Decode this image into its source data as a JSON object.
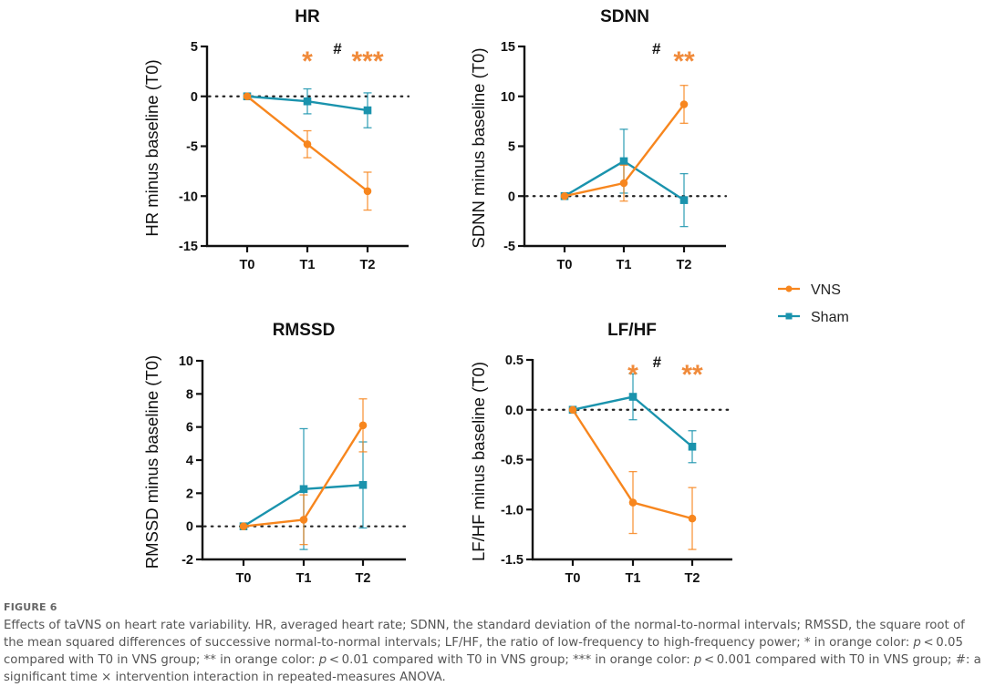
{
  "colors": {
    "vns": "#F7861E",
    "sham": "#1A93AD",
    "axis": "#111111",
    "annot_orange": "#F08A3A",
    "annot_black": "#111111"
  },
  "legend": {
    "items": [
      {
        "label": "VNS",
        "marker": "circle",
        "color": "#F7861E"
      },
      {
        "label": "Sham",
        "marker": "square",
        "color": "#1A93AD"
      }
    ]
  },
  "chart_data": [
    {
      "type": "line",
      "title": "HR",
      "ylabel": "HR minus baseline (T0)",
      "xlabel": "",
      "categories": [
        "T0",
        "T1",
        "T2"
      ],
      "ylim": [
        -15,
        5
      ],
      "yticks": [
        5,
        0,
        -5,
        -10,
        -15
      ],
      "ytick_labels": [
        "5",
        "0",
        "-5",
        "-10",
        "-15"
      ],
      "reference_line": 0,
      "series": [
        {
          "name": "VNS",
          "values": [
            0,
            -4.8,
            -9.5
          ],
          "err": [
            0,
            1.35,
            1.9
          ]
        },
        {
          "name": "Sham",
          "values": [
            0,
            -0.5,
            -1.4
          ],
          "err": [
            0,
            1.25,
            1.75
          ]
        }
      ],
      "annotations": [
        {
          "text": "*",
          "category": "T1",
          "color": "orange",
          "size": "large"
        },
        {
          "text": "#",
          "category": "T1.5",
          "color": "black",
          "size": "small"
        },
        {
          "text": "***",
          "category": "T2",
          "color": "orange",
          "size": "large"
        }
      ]
    },
    {
      "type": "line",
      "title": "SDNN",
      "ylabel": "SDNN minus baseline (T0)",
      "xlabel": "",
      "categories": [
        "T0",
        "T1",
        "T2"
      ],
      "ylim": [
        -5,
        15
      ],
      "yticks": [
        15,
        10,
        5,
        0,
        -5
      ],
      "ytick_labels": [
        "15",
        "10",
        "5",
        "0",
        "-5"
      ],
      "reference_line": 0,
      "series": [
        {
          "name": "VNS",
          "values": [
            0,
            1.3,
            9.2
          ],
          "err": [
            0,
            1.8,
            1.9
          ]
        },
        {
          "name": "Sham",
          "values": [
            0,
            3.5,
            -0.4
          ],
          "err": [
            0,
            3.2,
            2.65
          ]
        }
      ],
      "annotations": [
        {
          "text": "#",
          "category": "T1.55",
          "color": "black",
          "size": "small"
        },
        {
          "text": "**",
          "category": "T2",
          "color": "orange",
          "size": "large"
        }
      ]
    },
    {
      "type": "line",
      "title": "RMSSD",
      "ylabel": "RMSSD minus baseline (T0)",
      "xlabel": "",
      "categories": [
        "T0",
        "T1",
        "T2"
      ],
      "ylim": [
        -2,
        10
      ],
      "yticks": [
        10,
        8,
        6,
        4,
        2,
        0,
        -2
      ],
      "ytick_labels": [
        "10",
        "8",
        "6",
        "4",
        "2",
        "0",
        "-2"
      ],
      "reference_line": 0,
      "series": [
        {
          "name": "VNS",
          "values": [
            0,
            0.4,
            6.1
          ],
          "err": [
            0,
            1.5,
            1.6
          ]
        },
        {
          "name": "Sham",
          "values": [
            0,
            2.25,
            2.5
          ],
          "err": [
            0,
            3.65,
            2.6
          ]
        }
      ],
      "annotations": []
    },
    {
      "type": "line",
      "title": "LF/HF",
      "ylabel": "LF/HF minus baseline (T0)",
      "xlabel": "",
      "categories": [
        "T0",
        "T1",
        "T2"
      ],
      "ylim": [
        -1.5,
        0.5
      ],
      "yticks": [
        0.5,
        0.0,
        -0.5,
        -1.0,
        -1.5
      ],
      "ytick_labels": [
        "0.5",
        "0.0",
        "-0.5",
        "-1.0",
        "-1.5"
      ],
      "reference_line": 0,
      "series": [
        {
          "name": "VNS",
          "values": [
            0,
            -0.93,
            -1.09
          ],
          "err": [
            0,
            0.31,
            0.31
          ]
        },
        {
          "name": "Sham",
          "values": [
            0,
            0.13,
            -0.37
          ],
          "err": [
            0,
            0.23,
            0.16
          ]
        }
      ],
      "annotations": [
        {
          "text": "*",
          "category": "T1",
          "color": "orange",
          "size": "large"
        },
        {
          "text": "#",
          "category": "T1.4",
          "color": "black",
          "size": "small"
        },
        {
          "text": "**",
          "category": "T2",
          "color": "orange",
          "size": "large"
        }
      ]
    }
  ],
  "caption": {
    "label": "FIGURE 6",
    "text_parts": [
      {
        "t": "Effects of taVNS on heart rate variability. HR, averaged heart rate; SDNN, the standard deviation of the normal-to-normal intervals; RMSSD, the square root of the mean squared differences of successive normal-to-normal intervals; LF/HF, the ratio of low-frequency to high-frequency power; * in orange color: ",
        "i": false
      },
      {
        "t": "p",
        "i": true
      },
      {
        "t": " < 0.05 compared with T0 in VNS group; ** in orange color: ",
        "i": false
      },
      {
        "t": "p",
        "i": true
      },
      {
        "t": " < 0.01 compared with T0 in VNS group; *** in orange color: ",
        "i": false
      },
      {
        "t": "p",
        "i": true
      },
      {
        "t": " < 0.001 compared with T0 in VNS group; #: a significant time × intervention interaction in repeated-measures ANOVA.",
        "i": false
      }
    ]
  }
}
